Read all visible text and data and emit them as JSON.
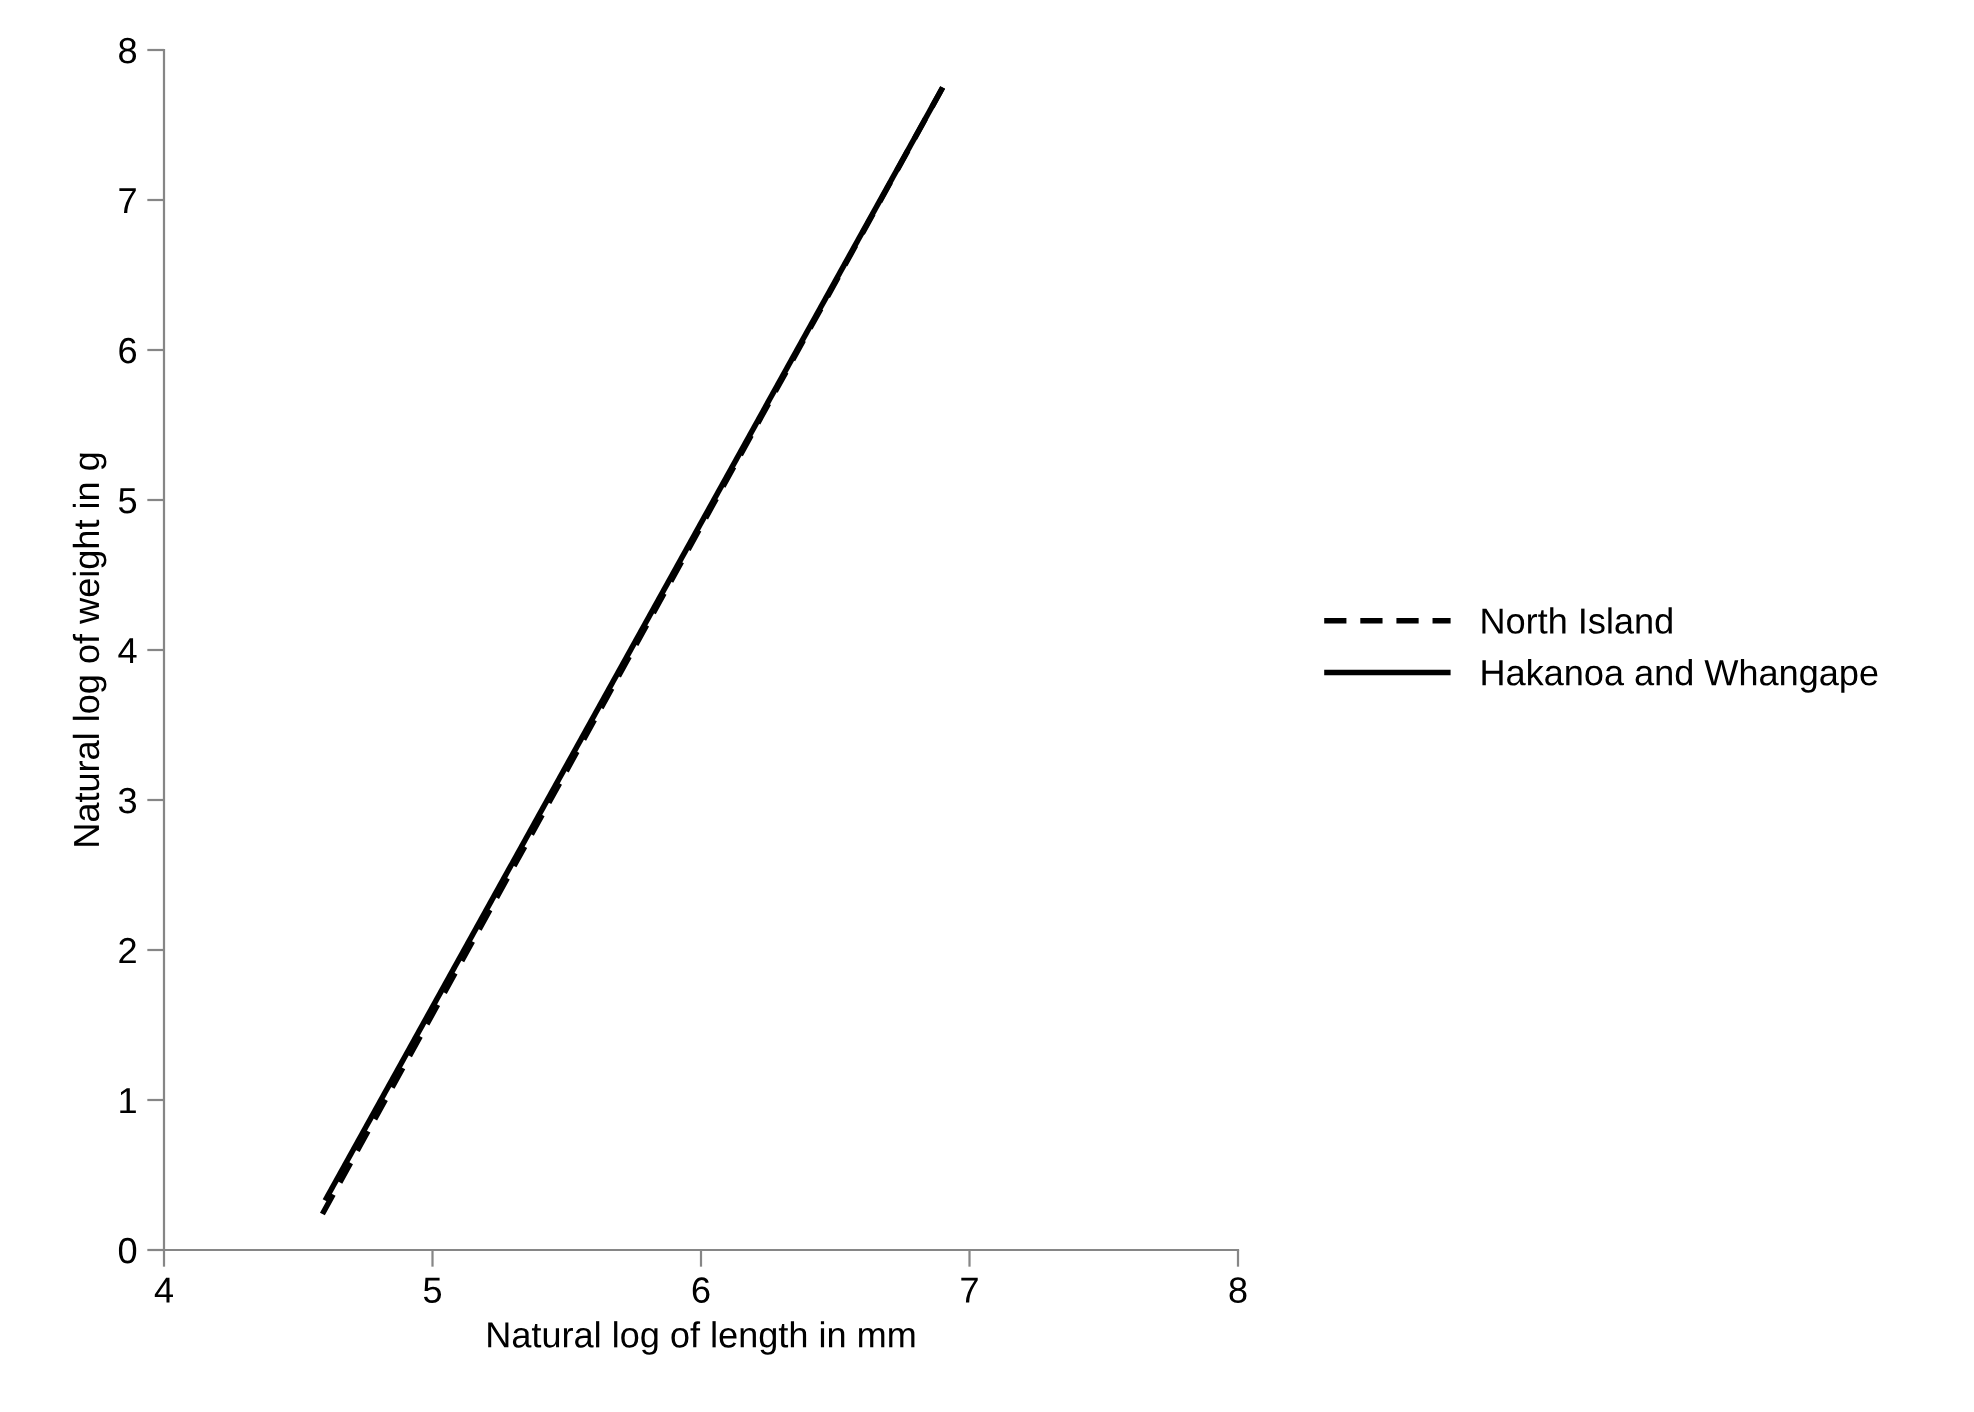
{
  "chart_data": {
    "type": "line",
    "xlabel": "Natural log of length in mm",
    "ylabel": "Natural log of weight in g",
    "xlim": [
      4,
      8
    ],
    "ylim": [
      0,
      8
    ],
    "xticks": [
      4,
      5,
      6,
      7,
      8
    ],
    "yticks": [
      0,
      1,
      2,
      3,
      4,
      5,
      6,
      7,
      8
    ],
    "grid": false,
    "legend": "right",
    "marker": "none",
    "series": [
      {
        "name": "North Island",
        "color": "#000000",
        "line_style": "dashed",
        "x": [
          4.59,
          6.9
        ],
        "values": [
          0.24,
          7.75
        ]
      },
      {
        "name": "Hakanoa and Whangape",
        "color": "#000000",
        "line_style": "solid",
        "x": [
          4.6,
          6.9
        ],
        "values": [
          0.33,
          7.75
        ]
      }
    ]
  }
}
